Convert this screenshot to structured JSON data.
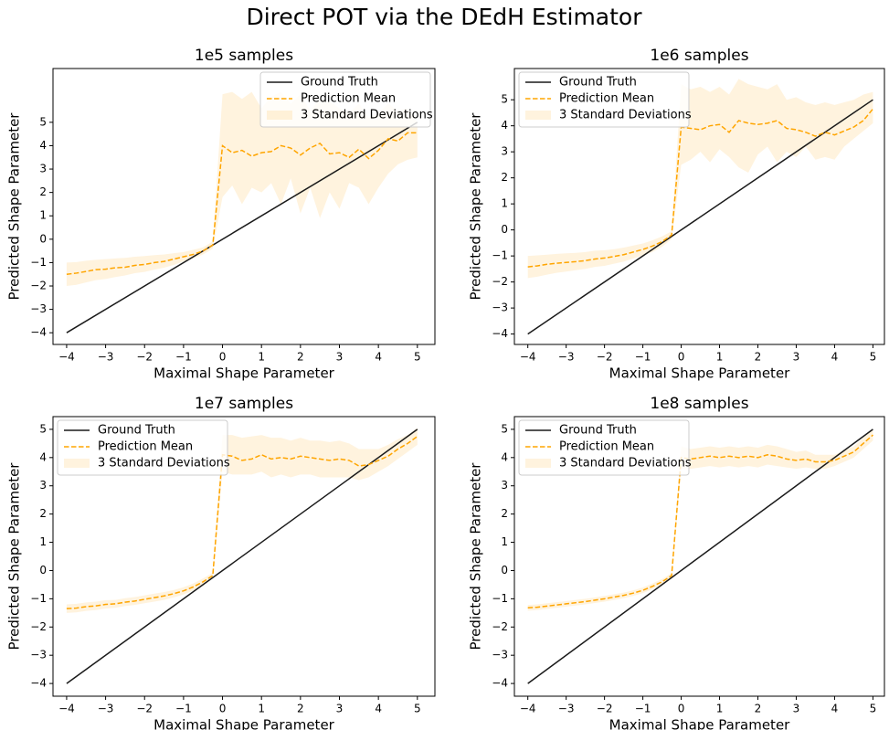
{
  "title": "Direct POT via the DEdH Estimator",
  "chart_data": [
    {
      "type": "line",
      "title": "1e5 samples",
      "xlabel": "Maximal Shape Parameter",
      "ylabel": "Predicted Shape Parameter",
      "xlim": [
        -4.35,
        5.45
      ],
      "ylim": [
        -4.5,
        7.3
      ],
      "xticks": [
        {
          "value": -4,
          "label": "−4"
        },
        {
          "value": -3,
          "label": "−3"
        },
        {
          "value": -2,
          "label": "−2"
        },
        {
          "value": -1,
          "label": "−1"
        },
        0,
        1,
        2,
        3,
        4,
        5
      ],
      "yticks": [
        {
          "value": -4,
          "label": "−4"
        },
        {
          "value": -3,
          "label": "−3"
        },
        {
          "value": -2,
          "label": "−2"
        },
        {
          "value": -1,
          "label": "−1"
        },
        0,
        1,
        2,
        3,
        4,
        5
      ],
      "grid": false,
      "legend": "upper right",
      "x": [
        -4,
        -3.75,
        -3.5,
        -3.25,
        -3,
        -2.75,
        -2.5,
        -2.25,
        -2,
        -1.75,
        -1.5,
        -1.25,
        -1,
        -0.75,
        -0.5,
        -0.25,
        0,
        0.25,
        0.5,
        0.75,
        1,
        1.25,
        1.5,
        1.75,
        2,
        2.25,
        2.5,
        2.75,
        3,
        3.25,
        3.5,
        3.75,
        4,
        4.25,
        4.5,
        4.75,
        5
      ],
      "series": [
        {
          "name": "Ground Truth",
          "color": "#1a1a1a",
          "style": "solid",
          "x": [
            -4,
            5
          ],
          "values": [
            -4,
            5
          ]
        },
        {
          "name": "Prediction Mean",
          "color": "#ffa500",
          "style": "dashed",
          "values": [
            -1.5,
            -1.45,
            -1.38,
            -1.3,
            -1.28,
            -1.22,
            -1.2,
            -1.12,
            -1.08,
            -1.0,
            -0.95,
            -0.85,
            -0.75,
            -0.65,
            -0.5,
            -0.25,
            4.0,
            3.7,
            3.8,
            3.55,
            3.7,
            3.75,
            4.0,
            3.9,
            3.6,
            3.9,
            4.1,
            3.65,
            3.7,
            3.5,
            3.85,
            3.45,
            3.8,
            4.3,
            4.2,
            4.55,
            4.55
          ]
        },
        {
          "name": "3 Standard Deviations",
          "color": "#ffa500",
          "opacity": 0.13,
          "style": "band",
          "lower": [
            -2.0,
            -1.95,
            -1.85,
            -1.75,
            -1.7,
            -1.62,
            -1.55,
            -1.45,
            -1.4,
            -1.3,
            -1.22,
            -1.1,
            -0.95,
            -0.82,
            -0.65,
            -0.4,
            1.8,
            2.3,
            1.5,
            2.2,
            2.0,
            2.4,
            1.5,
            2.6,
            1.1,
            2.2,
            0.9,
            2.0,
            1.3,
            2.4,
            2.2,
            1.5,
            2.2,
            2.8,
            3.2,
            3.4,
            3.5
          ],
          "upper": [
            -1.0,
            -0.98,
            -0.92,
            -0.88,
            -0.85,
            -0.82,
            -0.8,
            -0.75,
            -0.72,
            -0.68,
            -0.65,
            -0.6,
            -0.55,
            -0.45,
            -0.35,
            -0.1,
            6.2,
            6.3,
            6.0,
            6.3,
            5.6,
            6.1,
            6.3,
            5.8,
            6.2,
            5.5,
            6.0,
            5.9,
            5.6,
            5.4,
            5.8,
            5.2,
            5.4,
            5.8,
            5.5,
            5.6,
            5.0
          ]
        }
      ]
    },
    {
      "type": "line",
      "title": "1e6 samples",
      "xlabel": "Maximal Shape Parameter",
      "ylabel": "Predicted Shape Parameter",
      "xlim": [
        -4.35,
        5.3
      ],
      "ylim": [
        -4.4,
        6.2
      ],
      "xticks": [
        {
          "value": -4,
          "label": "−4"
        },
        {
          "value": -3,
          "label": "−3"
        },
        {
          "value": -2,
          "label": "−2"
        },
        {
          "value": -1,
          "label": "−1"
        },
        0,
        1,
        2,
        3,
        4,
        5
      ],
      "yticks": [
        {
          "value": -4,
          "label": "−4"
        },
        {
          "value": -3,
          "label": "−3"
        },
        {
          "value": -2,
          "label": "−2"
        },
        {
          "value": -1,
          "label": "−1"
        },
        0,
        1,
        2,
        3,
        4,
        5
      ],
      "grid": false,
      "legend": "upper left",
      "x": [
        -4,
        -3.75,
        -3.5,
        -3.25,
        -3,
        -2.75,
        -2.5,
        -2.25,
        -2,
        -1.75,
        -1.5,
        -1.25,
        -1,
        -0.75,
        -0.5,
        -0.25,
        0,
        0.25,
        0.5,
        0.75,
        1,
        1.25,
        1.5,
        1.75,
        2,
        2.25,
        2.5,
        2.75,
        3,
        3.25,
        3.5,
        3.75,
        4,
        4.25,
        4.5,
        4.75,
        5
      ],
      "series": [
        {
          "name": "Ground Truth",
          "color": "#1a1a1a",
          "style": "solid",
          "x": [
            -4,
            5
          ],
          "values": [
            -4,
            5
          ]
        },
        {
          "name": "Prediction Mean",
          "color": "#ffa500",
          "style": "dashed",
          "values": [
            -1.42,
            -1.38,
            -1.32,
            -1.28,
            -1.25,
            -1.22,
            -1.18,
            -1.12,
            -1.08,
            -1.02,
            -0.95,
            -0.85,
            -0.75,
            -0.62,
            -0.45,
            -0.2,
            3.95,
            3.9,
            3.85,
            4.0,
            4.05,
            3.75,
            4.2,
            4.1,
            4.05,
            4.1,
            4.2,
            3.9,
            3.85,
            3.75,
            3.6,
            3.75,
            3.65,
            3.8,
            3.95,
            4.2,
            4.65
          ]
        },
        {
          "name": "3 Standard Deviations",
          "color": "#ffa500",
          "opacity": 0.13,
          "style": "band",
          "lower": [
            -1.85,
            -1.8,
            -1.72,
            -1.65,
            -1.6,
            -1.55,
            -1.5,
            -1.42,
            -1.38,
            -1.3,
            -1.22,
            -1.1,
            -0.98,
            -0.85,
            -0.65,
            -0.35,
            2.5,
            2.7,
            3.0,
            2.6,
            3.1,
            2.8,
            2.4,
            2.2,
            2.9,
            3.2,
            2.6,
            3.0,
            2.8,
            3.2,
            2.7,
            2.8,
            2.7,
            3.2,
            3.5,
            3.8,
            4.1
          ],
          "upper": [
            -1.0,
            -0.98,
            -0.95,
            -0.92,
            -0.9,
            -0.88,
            -0.85,
            -0.8,
            -0.78,
            -0.74,
            -0.68,
            -0.6,
            -0.52,
            -0.4,
            -0.25,
            -0.05,
            5.6,
            5.4,
            5.5,
            5.3,
            5.5,
            5.2,
            5.8,
            5.6,
            5.5,
            5.4,
            5.6,
            5.0,
            5.1,
            4.9,
            4.8,
            4.9,
            4.8,
            4.9,
            5.0,
            5.2,
            5.3
          ]
        }
      ]
    },
    {
      "type": "line",
      "title": "1e7 samples",
      "xlabel": "Maximal Shape Parameter",
      "ylabel": "Predicted Shape Parameter",
      "xlim": [
        -4.35,
        5.45
      ],
      "ylim": [
        -4.45,
        5.45
      ],
      "xticks": [
        {
          "value": -4,
          "label": "−4"
        },
        {
          "value": -3,
          "label": "−3"
        },
        {
          "value": -2,
          "label": "−2"
        },
        {
          "value": -1,
          "label": "−1"
        },
        0,
        1,
        2,
        3,
        4,
        5
      ],
      "yticks": [
        {
          "value": -4,
          "label": "−4"
        },
        {
          "value": -3,
          "label": "−3"
        },
        {
          "value": -2,
          "label": "−2"
        },
        {
          "value": -1,
          "label": "−1"
        },
        0,
        1,
        2,
        3,
        4,
        5
      ],
      "grid": false,
      "legend": "upper left",
      "x": [
        -4,
        -3.75,
        -3.5,
        -3.25,
        -3,
        -2.75,
        -2.5,
        -2.25,
        -2,
        -1.75,
        -1.5,
        -1.25,
        -1,
        -0.75,
        -0.5,
        -0.25,
        0,
        0.25,
        0.5,
        0.75,
        1,
        1.25,
        1.5,
        1.75,
        2,
        2.25,
        2.5,
        2.75,
        3,
        3.25,
        3.5,
        3.75,
        4,
        4.25,
        4.5,
        4.75,
        5
      ],
      "series": [
        {
          "name": "Ground Truth",
          "color": "#1a1a1a",
          "style": "solid",
          "x": [
            -4,
            5
          ],
          "values": [
            -4,
            5
          ]
        },
        {
          "name": "Prediction Mean",
          "color": "#ffa500",
          "style": "dashed",
          "values": [
            -1.35,
            -1.33,
            -1.28,
            -1.25,
            -1.2,
            -1.18,
            -1.12,
            -1.08,
            -1.02,
            -0.96,
            -0.9,
            -0.82,
            -0.72,
            -0.58,
            -0.4,
            -0.18,
            4.1,
            4.05,
            3.9,
            3.95,
            4.1,
            3.95,
            4.0,
            3.95,
            4.05,
            4.0,
            3.95,
            3.9,
            3.95,
            3.9,
            3.7,
            3.75,
            3.9,
            4.05,
            4.3,
            4.5,
            4.75
          ]
        },
        {
          "name": "3 Standard Deviations",
          "color": "#ffa500",
          "opacity": 0.13,
          "style": "band",
          "lower": [
            -1.5,
            -1.48,
            -1.43,
            -1.4,
            -1.35,
            -1.32,
            -1.26,
            -1.22,
            -1.16,
            -1.1,
            -1.04,
            -0.95,
            -0.85,
            -0.7,
            -0.52,
            -0.28,
            3.5,
            3.4,
            3.4,
            3.4,
            3.5,
            3.3,
            3.4,
            3.3,
            3.4,
            3.4,
            3.3,
            3.3,
            3.3,
            3.3,
            3.2,
            3.3,
            3.5,
            3.7,
            3.95,
            4.2,
            4.45
          ],
          "upper": [
            -1.2,
            -1.18,
            -1.13,
            -1.1,
            -1.05,
            -1.04,
            -0.98,
            -0.94,
            -0.88,
            -0.82,
            -0.76,
            -0.69,
            -0.59,
            -0.46,
            -0.28,
            -0.08,
            4.8,
            4.8,
            4.7,
            4.75,
            4.8,
            4.7,
            4.7,
            4.6,
            4.7,
            4.6,
            4.6,
            4.55,
            4.6,
            4.5,
            4.3,
            4.3,
            4.3,
            4.45,
            4.65,
            4.8,
            5.05
          ]
        }
      ]
    },
    {
      "type": "line",
      "title": "1e8 samples",
      "xlabel": "Maximal Shape Parameter",
      "ylabel": "Predicted Shape Parameter",
      "xlim": [
        -4.35,
        5.3
      ],
      "ylim": [
        -4.45,
        5.45
      ],
      "xticks": [
        {
          "value": -4,
          "label": "−4"
        },
        {
          "value": -3,
          "label": "−3"
        },
        {
          "value": -2,
          "label": "−2"
        },
        {
          "value": -1,
          "label": "−1"
        },
        0,
        1,
        2,
        3,
        4,
        5
      ],
      "yticks": [
        {
          "value": -4,
          "label": "−4"
        },
        {
          "value": -3,
          "label": "−3"
        },
        {
          "value": -2,
          "label": "−2"
        },
        {
          "value": -1,
          "label": "−1"
        },
        0,
        1,
        2,
        3,
        4,
        5
      ],
      "grid": false,
      "legend": "upper left",
      "x": [
        -4,
        -3.75,
        -3.5,
        -3.25,
        -3,
        -2.75,
        -2.5,
        -2.25,
        -2,
        -1.75,
        -1.5,
        -1.25,
        -1,
        -0.75,
        -0.5,
        -0.25,
        0,
        0.25,
        0.5,
        0.75,
        1,
        1.25,
        1.5,
        1.75,
        2,
        2.25,
        2.5,
        2.75,
        3,
        3.25,
        3.5,
        3.75,
        4,
        4.25,
        4.5,
        4.75,
        5
      ],
      "series": [
        {
          "name": "Ground Truth",
          "color": "#1a1a1a",
          "style": "solid",
          "x": [
            -4,
            5
          ],
          "values": [
            -4,
            5
          ]
        },
        {
          "name": "Prediction Mean",
          "color": "#ffa500",
          "style": "dashed",
          "values": [
            -1.32,
            -1.3,
            -1.26,
            -1.22,
            -1.18,
            -1.14,
            -1.1,
            -1.05,
            -1.0,
            -0.94,
            -0.88,
            -0.8,
            -0.7,
            -0.56,
            -0.4,
            -0.18,
            4.0,
            3.95,
            4.0,
            4.05,
            4.0,
            4.05,
            4.0,
            4.05,
            4.0,
            4.1,
            4.05,
            3.95,
            3.9,
            3.95,
            3.85,
            3.85,
            3.9,
            4.05,
            4.2,
            4.5,
            4.8
          ]
        },
        {
          "name": "3 Standard Deviations",
          "color": "#ffa500",
          "opacity": 0.13,
          "style": "band",
          "lower": [
            -1.42,
            -1.4,
            -1.36,
            -1.32,
            -1.28,
            -1.24,
            -1.2,
            -1.15,
            -1.1,
            -1.04,
            -0.98,
            -0.9,
            -0.8,
            -0.66,
            -0.5,
            -0.26,
            3.6,
            3.6,
            3.65,
            3.7,
            3.65,
            3.7,
            3.65,
            3.7,
            3.65,
            3.75,
            3.7,
            3.65,
            3.6,
            3.65,
            3.6,
            3.6,
            3.7,
            3.85,
            4.0,
            4.3,
            4.6
          ],
          "upper": [
            -1.22,
            -1.2,
            -1.16,
            -1.12,
            -1.08,
            -1.04,
            -1.0,
            -0.95,
            -0.9,
            -0.84,
            -0.78,
            -0.7,
            -0.6,
            -0.46,
            -0.3,
            -0.1,
            4.4,
            4.3,
            4.35,
            4.4,
            4.35,
            4.4,
            4.35,
            4.4,
            4.35,
            4.45,
            4.4,
            4.3,
            4.2,
            4.25,
            4.1,
            4.1,
            4.1,
            4.25,
            4.4,
            4.7,
            5.0
          ]
        }
      ]
    }
  ]
}
